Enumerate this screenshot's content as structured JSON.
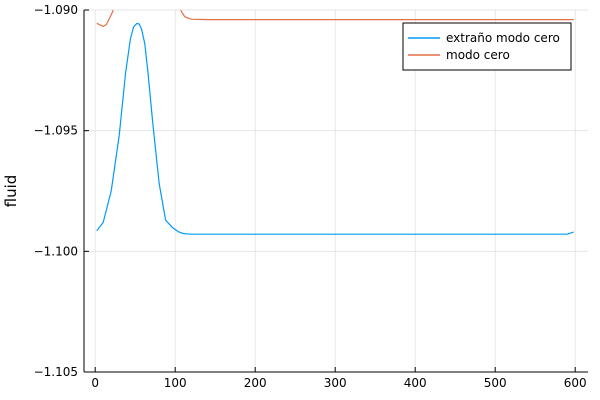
{
  "chart_data": {
    "type": "line",
    "title": "",
    "xlabel": "",
    "ylabel": "fluid",
    "xlim": [
      -14,
      616
    ],
    "ylim": [
      -1.105,
      -1.09
    ],
    "xticks": [
      0,
      100,
      200,
      300,
      400,
      500,
      600
    ],
    "yticks": [
      -1.105,
      -1.1,
      -1.095,
      -1.09
    ],
    "xtick_labels": [
      "0",
      "100",
      "200",
      "300",
      "400",
      "500",
      "600"
    ],
    "ytick_labels": [
      "−1.105",
      "−1.100",
      "−1.095",
      "−1.090"
    ],
    "grid": true,
    "legend_position": "top-right",
    "series": [
      {
        "name": "extraño modo cero",
        "color": "#009af9",
        "x": [
          2,
          10,
          20,
          30,
          38,
          44,
          48,
          52,
          55,
          58,
          62,
          66,
          72,
          80,
          88,
          96,
          104,
          110,
          115,
          120,
          140,
          200,
          300,
          400,
          500,
          590,
          598
        ],
        "y": [
          -1.09915,
          -1.0988,
          -1.0975,
          -1.0952,
          -1.0926,
          -1.0912,
          -1.0907,
          -1.09056,
          -1.09058,
          -1.0908,
          -1.0914,
          -1.0926,
          -1.0947,
          -1.0972,
          -1.0987,
          -1.099,
          -1.09919,
          -1.09926,
          -1.09928,
          -1.09929,
          -1.09929,
          -1.09929,
          -1.09929,
          -1.09929,
          -1.09929,
          -1.09929,
          -1.0992
        ]
      },
      {
        "name": "modo cero",
        "color": "#e26f46",
        "x": [
          2,
          6,
          10,
          14,
          17,
          20,
          22,
          23.5,
          106,
          108,
          112,
          120,
          140,
          200,
          300,
          400,
          500,
          590,
          598
        ],
        "y": [
          -1.09055,
          -1.09062,
          -1.09068,
          -1.0906,
          -1.0904,
          -1.0902,
          -1.09005,
          -1.0899,
          -1.0899,
          -1.09008,
          -1.09028,
          -1.09038,
          -1.0904,
          -1.0904,
          -1.0904,
          -1.0904,
          -1.0904,
          -1.0904,
          -1.0904
        ]
      }
    ]
  }
}
